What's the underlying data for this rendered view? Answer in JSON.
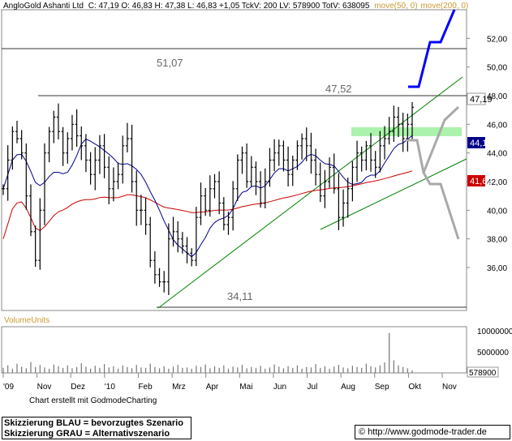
{
  "header": {
    "title": "AngloGold Ashanti Ltd",
    "stats": "C: 47,19 O: 46,83 H: 47,38 L: 46,83 +1,05 TckV: 200 LV: 578900 TotV: 638095",
    "ma_label": "move(50, 0)",
    "ma2_label": "move(200, 0)"
  },
  "colors": {
    "ma50": "#00008b",
    "ma200": "#cc0000",
    "trend": "#008000",
    "scenario_blue": "#0000ff",
    "scenario_gray": "#a9a9a9",
    "zone": "#90ee90",
    "ma_label": "#cc9933"
  },
  "chart_data": {
    "type": "ohlc",
    "y_range": [
      33,
      54
    ],
    "y_ticks": [
      "52,00",
      "50,00",
      "48,00",
      "46,00",
      "44,00",
      "42,00",
      "40,00",
      "38,00",
      "36,00"
    ],
    "x_labels": [
      "'09",
      "Nov",
      "Dez",
      "'10",
      "Feb",
      "Mrz",
      "Apr",
      "Mai",
      "Jun",
      "Jul",
      "Aug",
      "Sep",
      "Okt",
      "Nov"
    ],
    "annotations": {
      "level_high": "51,07",
      "level_mid": "47,52",
      "level_low": "34,11"
    },
    "last_price_label": "47,19",
    "ma50_label": "44,12",
    "ma200_label": "41,62",
    "price_series": [
      41.5,
      43.5,
      45.5,
      45.0,
      44.0,
      41.0,
      38.5,
      36.5,
      40.0,
      44.0,
      45.5,
      46.5,
      45.5,
      44.0,
      45.0,
      46.0,
      45.2,
      44.5,
      43.5,
      42.5,
      43.5,
      44.5,
      43.0,
      41.5,
      42.0,
      42.5,
      44.5,
      45.0,
      42.0,
      40.0,
      40.0,
      39.0,
      36.5,
      35.5,
      35.0,
      35.0,
      38.0,
      38.5,
      38.0,
      37.5,
      37.0,
      36.5,
      39.5,
      41.0,
      40.0,
      41.5,
      42.0,
      40.5,
      39.0,
      39.5,
      41.5,
      43.5,
      44.0,
      42.0,
      43.0,
      42.0,
      40.5,
      42.0,
      43.5,
      44.0,
      44.5,
      43.5,
      42.5,
      43.5,
      44.5,
      45.0,
      44.5,
      43.5,
      42.5,
      41.0,
      42.0,
      43.0,
      41.5,
      39.5,
      40.5,
      41.5,
      43.0,
      44.0,
      43.5,
      44.5,
      43.5,
      43.0,
      44.5,
      45.0,
      45.5,
      46.5,
      46.0,
      45.0,
      46.0,
      47.19
    ],
    "volume": {
      "label": "VolumeUnits",
      "ticks": [
        "10000000",
        "5000000"
      ],
      "last_label": "578900",
      "values": [
        1.2,
        1.8,
        1.0,
        2.2,
        1.5,
        1.1,
        2.6,
        1.4,
        1.9,
        1.3,
        1.0,
        2.0,
        1.6,
        1.2,
        1.8,
        1.1,
        1.4,
        2.3,
        1.5,
        1.0,
        1.7,
        1.2,
        2.1,
        1.3,
        1.6,
        1.0,
        1.8,
        1.4,
        1.1,
        1.9,
        1.3,
        1.2,
        2.2,
        1.4,
        1.1,
        1.6,
        1.0,
        1.5,
        1.9,
        1.2,
        1.3,
        1.0,
        1.7,
        1.4,
        2.0,
        1.1,
        1.6,
        1.2,
        1.8,
        1.0,
        1.5,
        1.3,
        1.9,
        1.1,
        1.4,
        1.2,
        1.7,
        1.0,
        1.3,
        2.0,
        1.5,
        1.1,
        1.6,
        1.2,
        1.8,
        1.0,
        1.4,
        1.3,
        2.1,
        1.2,
        1.6,
        1.0,
        1.5,
        1.9,
        1.3,
        1.1,
        1.7,
        1.4,
        1.2,
        2.2,
        1.6,
        1.3,
        1.8,
        2.5,
        9.5,
        3.0,
        1.8,
        1.4,
        1.1,
        0.6
      ]
    }
  },
  "footer": {
    "credit": "Chart erstellt mit GodmodeCharting",
    "legend_blue": "Skizzierung BLAU = bevorzugtes Szenario",
    "legend_gray": "Skizzierung GRAU = Alternativszenario",
    "url": "http://www.godmode-trader.de"
  }
}
